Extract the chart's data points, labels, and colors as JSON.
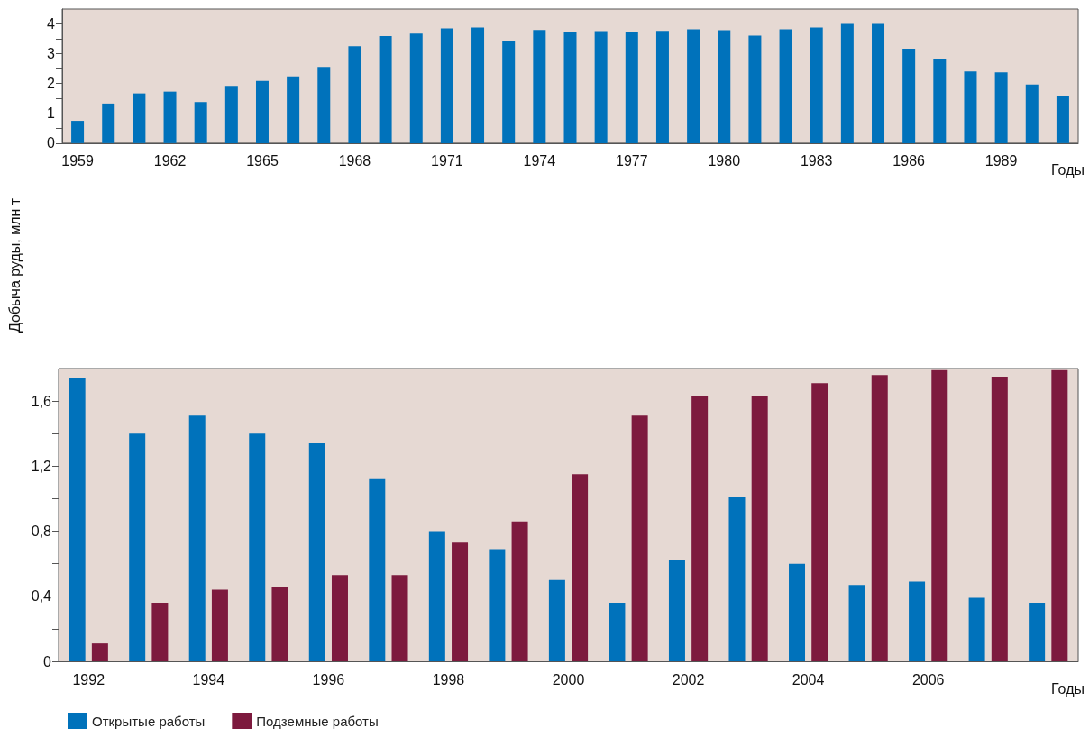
{
  "chart_data": [
    {
      "type": "bar",
      "ylabel": "Добыча руды, млн т",
      "xlabel": "Годы",
      "categories": [
        "1959",
        null,
        null,
        "1962",
        null,
        null,
        "1965",
        null,
        null,
        "1968",
        null,
        null,
        "1971",
        null,
        null,
        "1974",
        null,
        null,
        "1977",
        null,
        null,
        "1980",
        null,
        null,
        "1983",
        null,
        null,
        "1986",
        null,
        null,
        "1989",
        null,
        null
      ],
      "series": [
        {
          "color": "#0072bb",
          "values": [
            0.75,
            1.33,
            1.67,
            1.73,
            1.38,
            1.92,
            2.09,
            2.24,
            2.56,
            3.25,
            3.59,
            3.68,
            3.85,
            3.88,
            3.44,
            3.8,
            3.74,
            3.76,
            3.74,
            3.77,
            3.82,
            3.79,
            3.61,
            3.82,
            3.88,
            4.0,
            4.0,
            3.17,
            2.81,
            2.41,
            2.38,
            1.97,
            1.59
          ]
        }
      ],
      "ylim": [
        0,
        4.5
      ],
      "yticks": [
        0,
        {
          "value": 0.5,
          "label": null
        },
        1,
        {
          "value": 1.5,
          "label": null
        },
        2,
        {
          "value": 2.5,
          "label": null
        },
        3,
        {
          "value": 3.5,
          "label": null
        },
        4
      ],
      "grid": false,
      "legend": false
    },
    {
      "type": "bar",
      "xlabel": "Годы",
      "categories": [
        "1992",
        null,
        "1994",
        null,
        "1996",
        null,
        "1998",
        null,
        "2000",
        null,
        "2002",
        null,
        "2004",
        null,
        "2006",
        null,
        null
      ],
      "series": [
        {
          "name": "Открытые работы",
          "color": "#0072bb",
          "values": [
            1.74,
            1.4,
            1.51,
            1.4,
            1.34,
            1.12,
            0.8,
            0.69,
            0.5,
            0.36,
            0.62,
            1.01,
            0.6,
            0.47,
            0.49,
            0.39,
            0.36
          ]
        },
        {
          "name": "Подземные работы",
          "color": "#7d1a3e",
          "values": [
            0.11,
            0.36,
            0.44,
            0.46,
            0.53,
            0.53,
            0.73,
            0.86,
            1.15,
            1.51,
            1.63,
            1.63,
            1.71,
            1.76,
            1.79,
            1.75,
            1.79
          ]
        }
      ],
      "ylim": [
        0,
        1.8
      ],
      "yticks": [
        0,
        {
          "value": 0.2,
          "label": null
        },
        {
          "value": 0.4,
          "label": "0,4"
        },
        {
          "value": 0.6,
          "label": null
        },
        {
          "value": 0.8,
          "label": "0,8"
        },
        {
          "value": 1.0,
          "label": null
        },
        {
          "value": 1.2,
          "label": "1,2"
        },
        {
          "value": 1.4,
          "label": null
        },
        {
          "value": 1.6,
          "label": "1,6"
        }
      ],
      "grid": false,
      "legend": "bottom left"
    }
  ]
}
